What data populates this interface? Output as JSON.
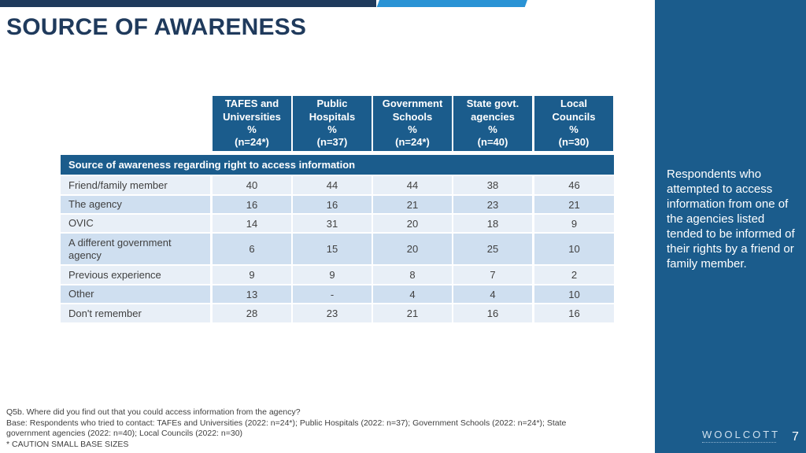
{
  "title": "SOURCE OF AWARENESS",
  "columns": [
    {
      "line1": "TAFES and",
      "line2": "Universities",
      "line3": "%",
      "line4": "(n=24*)"
    },
    {
      "line1": "Public",
      "line2": "Hospitals",
      "line3": "%",
      "line4": "(n=37)"
    },
    {
      "line1": "Government",
      "line2": "Schools",
      "line3": "%",
      "line4": "(n=24*)"
    },
    {
      "line1": "State govt.",
      "line2": "agencies",
      "line3": "%",
      "line4": "(n=40)"
    },
    {
      "line1": "Local",
      "line2": "Councils",
      "line3": "%",
      "line4": "(n=30)"
    }
  ],
  "section_heading": "Source of awareness regarding right to access information",
  "rows": [
    {
      "label": "Friend/family member",
      "values": [
        "40",
        "44",
        "44",
        "38",
        "46"
      ]
    },
    {
      "label": "The agency",
      "values": [
        "16",
        "16",
        "21",
        "23",
        "21"
      ]
    },
    {
      "label": "OVIC",
      "values": [
        "14",
        "31",
        "20",
        "18",
        "9"
      ]
    },
    {
      "label": "A different government agency",
      "values": [
        "6",
        "15",
        "20",
        "25",
        "10"
      ]
    },
    {
      "label": "Previous experience",
      "values": [
        "9",
        "9",
        "8",
        "7",
        "2"
      ]
    },
    {
      "label": "Other",
      "values": [
        "13",
        "-",
        "4",
        "4",
        "10"
      ]
    },
    {
      "label": "Don't remember",
      "values": [
        "28",
        "23",
        "21",
        "16",
        "16"
      ]
    }
  ],
  "side_note": "Respondents who attempted to access information from one of the agencies listed tended to be informed of their rights by a friend or family member.",
  "footnote": {
    "line1": "Q5b.  Where did you find out that you could access information from the agency?",
    "line2": "Base: Respondents who tried to contact: TAFEs and Universities (2022: n=24*); Public Hospitals (2022: n=37); Government Schools (2022: n=24*); State",
    "line3": "government agencies (2022: n=40); Local Councils (2022: n=30)",
    "line4": "* CAUTION SMALL BASE SIZES"
  },
  "logo_text": "WOOLCOTT",
  "page_number": "7",
  "colors": {
    "navy": "#1f3a5c",
    "panel_blue": "#1b5c8c",
    "accent_blue": "#2a93d5",
    "row_light": "#e8eff7",
    "row_dark": "#cfdff0"
  }
}
